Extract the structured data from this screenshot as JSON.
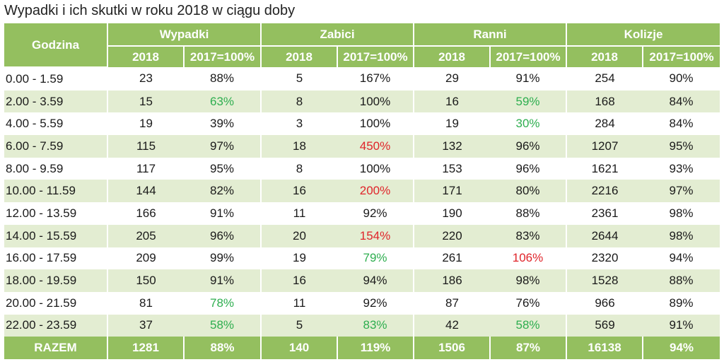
{
  "title": "Wypadki i ich skutki w roku 2018 w ciągu doby",
  "header": {
    "godzina": "Godzina",
    "groups": [
      "Wypadki",
      "Zabici",
      "Ranni",
      "Kolizje"
    ],
    "sub_year": "2018",
    "sub_pct": "2017=100%"
  },
  "colors": {
    "header_green": "#94bf5f",
    "stripe_green": "#e3edd2",
    "pct_green": "#2eae4f",
    "pct_red": "#e0242a"
  },
  "rows": [
    {
      "hour": "0.00 - 1.59",
      "cells": [
        {
          "v": "23"
        },
        {
          "v": "88%"
        },
        {
          "v": "5"
        },
        {
          "v": "167%"
        },
        {
          "v": "29"
        },
        {
          "v": "91%"
        },
        {
          "v": "254"
        },
        {
          "v": "90%"
        }
      ]
    },
    {
      "hour": "2.00 - 3.59",
      "cells": [
        {
          "v": "15"
        },
        {
          "v": "63%",
          "c": "green"
        },
        {
          "v": "8"
        },
        {
          "v": "100%"
        },
        {
          "v": "16"
        },
        {
          "v": "59%",
          "c": "green"
        },
        {
          "v": "168"
        },
        {
          "v": "84%"
        }
      ]
    },
    {
      "hour": "4.00 - 5.59",
      "cells": [
        {
          "v": "19"
        },
        {
          "v": "39%"
        },
        {
          "v": "3"
        },
        {
          "v": "100%"
        },
        {
          "v": "19"
        },
        {
          "v": "30%",
          "c": "green"
        },
        {
          "v": "284"
        },
        {
          "v": "84%"
        }
      ]
    },
    {
      "hour": "6.00 - 7.59",
      "cells": [
        {
          "v": "115"
        },
        {
          "v": "97%"
        },
        {
          "v": "18"
        },
        {
          "v": "450%",
          "c": "red"
        },
        {
          "v": "132"
        },
        {
          "v": "96%"
        },
        {
          "v": "1207"
        },
        {
          "v": "95%"
        }
      ]
    },
    {
      "hour": "8.00 - 9.59",
      "cells": [
        {
          "v": "117"
        },
        {
          "v": "95%"
        },
        {
          "v": "8"
        },
        {
          "v": "100%"
        },
        {
          "v": "153"
        },
        {
          "v": "96%"
        },
        {
          "v": "1621"
        },
        {
          "v": "93%"
        }
      ]
    },
    {
      "hour": "10.00 - 11.59",
      "cells": [
        {
          "v": "144"
        },
        {
          "v": "82%"
        },
        {
          "v": "16"
        },
        {
          "v": "200%",
          "c": "red"
        },
        {
          "v": "171"
        },
        {
          "v": "80%"
        },
        {
          "v": "2216"
        },
        {
          "v": "97%"
        }
      ]
    },
    {
      "hour": "12.00 - 13.59",
      "cells": [
        {
          "v": "166"
        },
        {
          "v": "91%"
        },
        {
          "v": "11"
        },
        {
          "v": "92%"
        },
        {
          "v": "190"
        },
        {
          "v": "88%"
        },
        {
          "v": "2361"
        },
        {
          "v": "98%"
        }
      ]
    },
    {
      "hour": "14.00 - 15.59",
      "cells": [
        {
          "v": "205"
        },
        {
          "v": "96%"
        },
        {
          "v": "20"
        },
        {
          "v": "154%",
          "c": "red"
        },
        {
          "v": "220"
        },
        {
          "v": "83%"
        },
        {
          "v": "2644"
        },
        {
          "v": "98%"
        }
      ]
    },
    {
      "hour": "16.00 - 17.59",
      "cells": [
        {
          "v": "209"
        },
        {
          "v": "99%"
        },
        {
          "v": "19"
        },
        {
          "v": "79%",
          "c": "green"
        },
        {
          "v": "261"
        },
        {
          "v": "106%",
          "c": "red"
        },
        {
          "v": "2320"
        },
        {
          "v": "94%"
        }
      ]
    },
    {
      "hour": "18.00 - 19.59",
      "cells": [
        {
          "v": "150"
        },
        {
          "v": "91%"
        },
        {
          "v": "16"
        },
        {
          "v": "94%"
        },
        {
          "v": "186"
        },
        {
          "v": "98%"
        },
        {
          "v": "1528"
        },
        {
          "v": "88%"
        }
      ]
    },
    {
      "hour": "20.00 - 21.59",
      "cells": [
        {
          "v": "81"
        },
        {
          "v": "78%",
          "c": "green"
        },
        {
          "v": "11"
        },
        {
          "v": "92%"
        },
        {
          "v": "87"
        },
        {
          "v": "76%"
        },
        {
          "v": "966"
        },
        {
          "v": "89%"
        }
      ]
    },
    {
      "hour": "22.00 - 23.59",
      "cells": [
        {
          "v": "37"
        },
        {
          "v": "58%",
          "c": "green"
        },
        {
          "v": "5"
        },
        {
          "v": "83%",
          "c": "green"
        },
        {
          "v": "42"
        },
        {
          "v": "58%",
          "c": "green"
        },
        {
          "v": "569"
        },
        {
          "v": "91%"
        }
      ]
    }
  ],
  "total": {
    "label": "RAZEM",
    "cells": [
      "1281",
      "88%",
      "140",
      "119%",
      "1506",
      "87%",
      "16138",
      "94%"
    ]
  }
}
